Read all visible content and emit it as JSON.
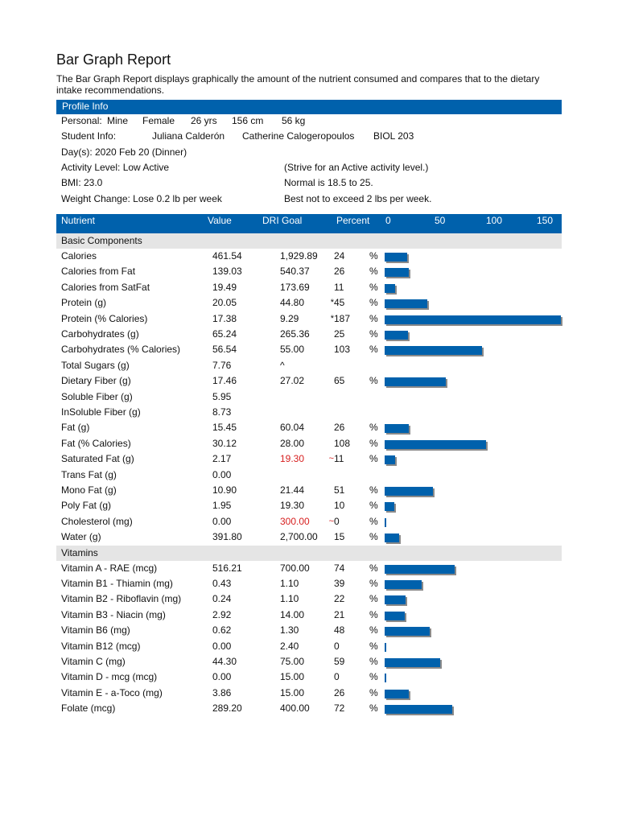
{
  "title": "Bar Graph Report",
  "description": "The Bar Graph Report displays graphically the amount of the nutrient consumed and compares that to the dietary intake recommendations.",
  "profile": {
    "header": "Profile Info",
    "personal_label": "Personal:",
    "personal_name": "Mine",
    "gender": "Female",
    "age": "26 yrs",
    "height": "156 cm",
    "weight": "56 kg",
    "student_label": "Student Info:",
    "student_name": "Juliana Calderón",
    "instructor": "Catherine Calogeropoulos",
    "course": "BIOL 203",
    "days": "Day(s):  2020 Feb 20 (Dinner)",
    "activity": "Activity Level: Low Active",
    "activity_note": "(Strive for an Active activity level.)",
    "bmi": "BMI: 23.0",
    "bmi_note": "Normal is 18.5 to 25.",
    "weight_change": "Weight Change: Lose 0.2 lb per week",
    "weight_change_note": "Best not to exceed 2 lbs per week."
  },
  "table_header": {
    "nutrient": "Nutrient",
    "value": "Value",
    "dri_goal": "DRI Goal",
    "percent": "Percent",
    "scale": [
      "0",
      "50",
      "100",
      "150"
    ]
  },
  "colors": {
    "accent": "#0061ac",
    "warning": "#d72020",
    "section_bg": "#e5e5e5",
    "bar_shadow": "#8a8a8a"
  },
  "sections": [
    {
      "name": "Basic Components",
      "rows": [
        {
          "name": "Calories",
          "value": "461.54",
          "dri": "1,929.89",
          "mark": "",
          "pct": "24",
          "psign": "%",
          "bar": 24
        },
        {
          "name": "Calories from Fat",
          "value": "139.03",
          "dri": "540.37",
          "mark": "",
          "pct": "26",
          "psign": "%",
          "bar": 26
        },
        {
          "name": "Calories from SatFat",
          "value": "19.49",
          "dri": "173.69",
          "mark": "",
          "pct": "11",
          "psign": "%",
          "bar": 11
        },
        {
          "name": "Protein (g)",
          "value": "20.05",
          "dri": "44.80",
          "mark": "*",
          "pct": "45",
          "psign": "%",
          "bar": 45
        },
        {
          "name": "Protein (% Calories)",
          "value": "17.38",
          "dri": "9.29",
          "mark": "*",
          "pct": "187",
          "psign": "%",
          "bar": 187
        },
        {
          "name": "Carbohydrates (g)",
          "value": "65.24",
          "dri": "265.36",
          "mark": "",
          "pct": "25",
          "psign": "%",
          "bar": 25
        },
        {
          "name": "Carbohydrates (% Calories)",
          "value": "56.54",
          "dri": "55.00",
          "mark": "",
          "pct": "103",
          "psign": "%",
          "bar": 103
        },
        {
          "name": "Total Sugars (g)",
          "value": "7.76",
          "dri": "^",
          "mark": "",
          "pct": "",
          "psign": ""
        },
        {
          "name": "Dietary Fiber (g)",
          "value": "17.46",
          "dri": "27.02",
          "mark": "",
          "pct": "65",
          "psign": "%",
          "bar": 65
        },
        {
          "name": "Soluble Fiber (g)",
          "value": "5.95",
          "dri": "",
          "mark": "",
          "pct": "",
          "psign": ""
        },
        {
          "name": "InSoluble Fiber (g)",
          "value": "8.73",
          "dri": "",
          "mark": "",
          "pct": "",
          "psign": ""
        },
        {
          "name": "Fat (g)",
          "value": "15.45",
          "dri": "60.04",
          "mark": "",
          "pct": "26",
          "psign": "%",
          "bar": 26
        },
        {
          "name": "Fat (% Calories)",
          "value": "30.12",
          "dri": "28.00",
          "mark": "",
          "pct": "108",
          "psign": "%",
          "bar": 108
        },
        {
          "name": "Saturated Fat (g)",
          "value": "2.17",
          "dri": "19.30",
          "red": true,
          "mark": "~",
          "pct": "11",
          "psign": "%",
          "bar": 11
        },
        {
          "name": "Trans Fat (g)",
          "value": "0.00",
          "dri": "",
          "mark": "",
          "pct": "",
          "psign": ""
        },
        {
          "name": "Mono Fat (g)",
          "value": "10.90",
          "dri": "21.44",
          "mark": "",
          "pct": "51",
          "psign": "%",
          "bar": 51
        },
        {
          "name": "Poly Fat (g)",
          "value": "1.95",
          "dri": "19.30",
          "mark": "",
          "pct": "10",
          "psign": "%",
          "bar": 10
        },
        {
          "name": "Cholesterol (mg)",
          "value": "0.00",
          "dri": "300.00",
          "red": true,
          "mark": "~",
          "pct": "0",
          "psign": "%",
          "bar": 0
        },
        {
          "name": "Water (g)",
          "value": "391.80",
          "dri": "2,700.00",
          "mark": "",
          "pct": "15",
          "psign": "%",
          "bar": 15
        }
      ]
    },
    {
      "name": "Vitamins",
      "rows": [
        {
          "name": "Vitamin A - RAE (mcg)",
          "value": "516.21",
          "dri": "700.00",
          "mark": "",
          "pct": "74",
          "psign": "%",
          "bar": 74
        },
        {
          "name": "Vitamin B1 - Thiamin (mg)",
          "value": "0.43",
          "dri": "1.10",
          "mark": "",
          "pct": "39",
          "psign": "%",
          "bar": 39
        },
        {
          "name": "Vitamin B2 - Riboflavin (mg)",
          "value": "0.24",
          "dri": "1.10",
          "mark": "",
          "pct": "22",
          "psign": "%",
          "bar": 22
        },
        {
          "name": "Vitamin B3 - Niacin (mg)",
          "value": "2.92",
          "dri": "14.00",
          "mark": "",
          "pct": "21",
          "psign": "%",
          "bar": 21
        },
        {
          "name": "Vitamin B6 (mg)",
          "value": "0.62",
          "dri": "1.30",
          "mark": "",
          "pct": "48",
          "psign": "%",
          "bar": 48
        },
        {
          "name": "Vitamin B12 (mcg)",
          "value": "0.00",
          "dri": "2.40",
          "mark": "",
          "pct": "0",
          "psign": "%",
          "bar": 0
        },
        {
          "name": "Vitamin C (mg)",
          "value": "44.30",
          "dri": "75.00",
          "mark": "",
          "pct": "59",
          "psign": "%",
          "bar": 59
        },
        {
          "name": "Vitamin D - mcg (mcg)",
          "value": "0.00",
          "dri": "15.00",
          "mark": "",
          "pct": "0",
          "psign": "%",
          "bar": 0
        },
        {
          "name": "Vitamin E - a-Toco (mg)",
          "value": "3.86",
          "dri": "15.00",
          "mark": "",
          "pct": "26",
          "psign": "%",
          "bar": 26
        },
        {
          "name": "Folate (mcg)",
          "value": "289.20",
          "dri": "400.00",
          "mark": "",
          "pct": "72",
          "psign": "%",
          "bar": 72
        }
      ]
    }
  ]
}
